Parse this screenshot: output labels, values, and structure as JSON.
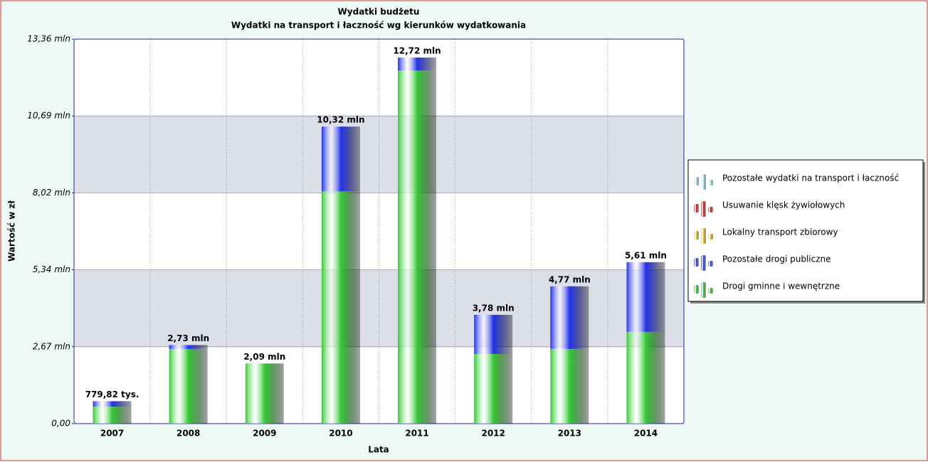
{
  "chart_data": {
    "type": "stacked_bar",
    "title": "Wydatki budżetu",
    "subtitle": "Wydatki na transport i łaczność wg kierunków wydatkowania",
    "y_label": "Wartość w zł",
    "x_label": "Lata",
    "categories": [
      "2007",
      "2008",
      "2009",
      "2010",
      "2011",
      "2012",
      "2013",
      "2014"
    ],
    "series": [
      {
        "name": "Drogi gminne i wewnętrzne",
        "color": "#33cc33",
        "values": [
          590000,
          2590000,
          2090000,
          8070000,
          12270000,
          2420000,
          2590000,
          3190000
        ]
      },
      {
        "name": "Pozostałe drogi publiczne",
        "color": "#2233ee",
        "values": [
          189820,
          140000,
          0,
          2250000,
          450000,
          1360000,
          2180000,
          2420000
        ]
      },
      {
        "name": "Lokalny transport zbiorowy",
        "color": "#ffcc00",
        "values": [
          0,
          0,
          0,
          0,
          0,
          0,
          0,
          0
        ]
      },
      {
        "name": "Usuwanie klęsk żywiołowych",
        "color": "#dd1111",
        "values": [
          0,
          0,
          0,
          0,
          0,
          0,
          0,
          0
        ]
      },
      {
        "name": "Pozostałe wydatki na transport i łaczność",
        "color": "#aaeeff",
        "values": [
          0,
          0,
          0,
          0,
          0,
          0,
          0,
          0
        ]
      }
    ],
    "total_labels": [
      "779,82 tys.",
      "2,73 mln",
      "2,09 mln",
      "10,32 mln",
      "12,72 mln",
      "3,78 mln",
      "4,77 mln",
      "5,61 mln"
    ],
    "ylim": [
      0,
      13360000
    ],
    "yticks": [
      {
        "value": 0,
        "label": "0,00"
      },
      {
        "value": 2672000,
        "label": "2,67 mln"
      },
      {
        "value": 5344000,
        "label": "5,34 mln"
      },
      {
        "value": 8016000,
        "label": "8,02 mln"
      },
      {
        "value": 10688000,
        "label": "10,69 mln"
      },
      {
        "value": 13360000,
        "label": "13,36 mln"
      }
    ],
    "grid": true,
    "legend": "right"
  }
}
